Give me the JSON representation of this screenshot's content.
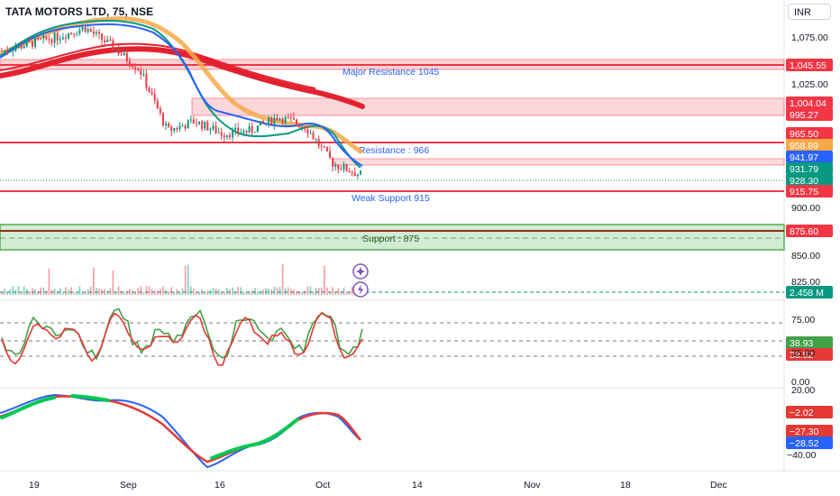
{
  "header": {
    "title": "TATA MOTORS LTD, 75, NSE",
    "currency": "INR"
  },
  "colors": {
    "resistance": "#f23645",
    "support": "#4caf50",
    "ema_fast": "#2962ff",
    "ema_mid": "#089981",
    "ema_slow": "#f7a94a",
    "ema_long": "#e4212f",
    "annotation": "#2962ff",
    "stoch_k": "#43a047",
    "stoch_d": "#e53935"
  },
  "annotations": {
    "major_resistance": "Major Resistance 1045",
    "resistance": "Resistance : 966",
    "weak_support": "Weak Support 915",
    "support": "Support : 875"
  },
  "price_axis": {
    "ticks": [
      "1,075.00",
      "1,025.00",
      "900.00",
      "850.00",
      "825.00"
    ],
    "tags": [
      {
        "value": "1,045.55",
        "color": "#f23645"
      },
      {
        "value": "1,004.04",
        "color": "#f23645"
      },
      {
        "value": "995.27",
        "color": "#f23645"
      },
      {
        "value": "965.50",
        "color": "#f23645"
      },
      {
        "value": "958.89",
        "color": "#f7a94a"
      },
      {
        "value": "941.97",
        "color": "#2962ff"
      },
      {
        "value": "931.79",
        "color": "#089981"
      },
      {
        "value": "928.30",
        "color": "#089981"
      },
      {
        "value": "915.75",
        "color": "#f23645"
      },
      {
        "value": "875.60",
        "color": "#f23645"
      }
    ],
    "volume_tag": {
      "value": "2.458 M",
      "color": "#089981"
    }
  },
  "stoch_axis": {
    "ticks": [
      "75.00",
      "50.00",
      "25.00",
      "0.00"
    ],
    "tags": [
      {
        "value": "38.93",
        "color": "#43a047"
      },
      {
        "value": "33.52",
        "color": "#e53935"
      }
    ]
  },
  "osc_axis": {
    "ticks": [
      "20.00",
      "−40.00"
    ],
    "tags": [
      {
        "value": "−2.02",
        "color": "#e53935"
      },
      {
        "value": "−27.30",
        "color": "#e53935"
      },
      {
        "value": "−28.52",
        "color": "#2962ff"
      }
    ]
  },
  "x_axis": {
    "labels": [
      "19",
      "Sep",
      "16",
      "Oct",
      "14",
      "Nov",
      "18",
      "Dec"
    ]
  },
  "chart_data": {
    "type": "line",
    "symbol": "TATA MOTORS LTD",
    "interval": "75",
    "exchange": "NSE",
    "levels": {
      "major_resistance": 1045,
      "resistance_zone": [
        995.27,
        1004.04
      ],
      "resistance": 966,
      "resistance_line": 965.5,
      "weak_support": 915,
      "weak_support_line": 915.75,
      "support": 875,
      "support_zone": [
        858,
        878
      ]
    },
    "last_values": {
      "close": 928.3,
      "ema_fast": 941.97,
      "ema_mid": 931.79,
      "ema_slow": 958.89,
      "volume": "2.458 M",
      "stoch_k": 38.93,
      "stoch_d": 33.52,
      "osc_1": -2.02,
      "osc_2": -27.3,
      "osc_3": -28.52
    },
    "price_series_approx": [
      {
        "date": "Aug 14",
        "price": 1060
      },
      {
        "date": "Aug 19",
        "price": 1068
      },
      {
        "date": "Aug 26",
        "price": 1075
      },
      {
        "date": "Aug 30",
        "price": 1085
      },
      {
        "date": "Sep 5",
        "price": 1065
      },
      {
        "date": "Sep 9",
        "price": 1040
      },
      {
        "date": "Sep 12",
        "price": 975
      },
      {
        "date": "Sep 16",
        "price": 985
      },
      {
        "date": "Sep 20",
        "price": 972
      },
      {
        "date": "Sep 24",
        "price": 975
      },
      {
        "date": "Sep 27",
        "price": 990
      },
      {
        "date": "Oct 1",
        "price": 980
      },
      {
        "date": "Oct 3",
        "price": 940
      },
      {
        "date": "Oct 7",
        "price": 928
      }
    ]
  }
}
